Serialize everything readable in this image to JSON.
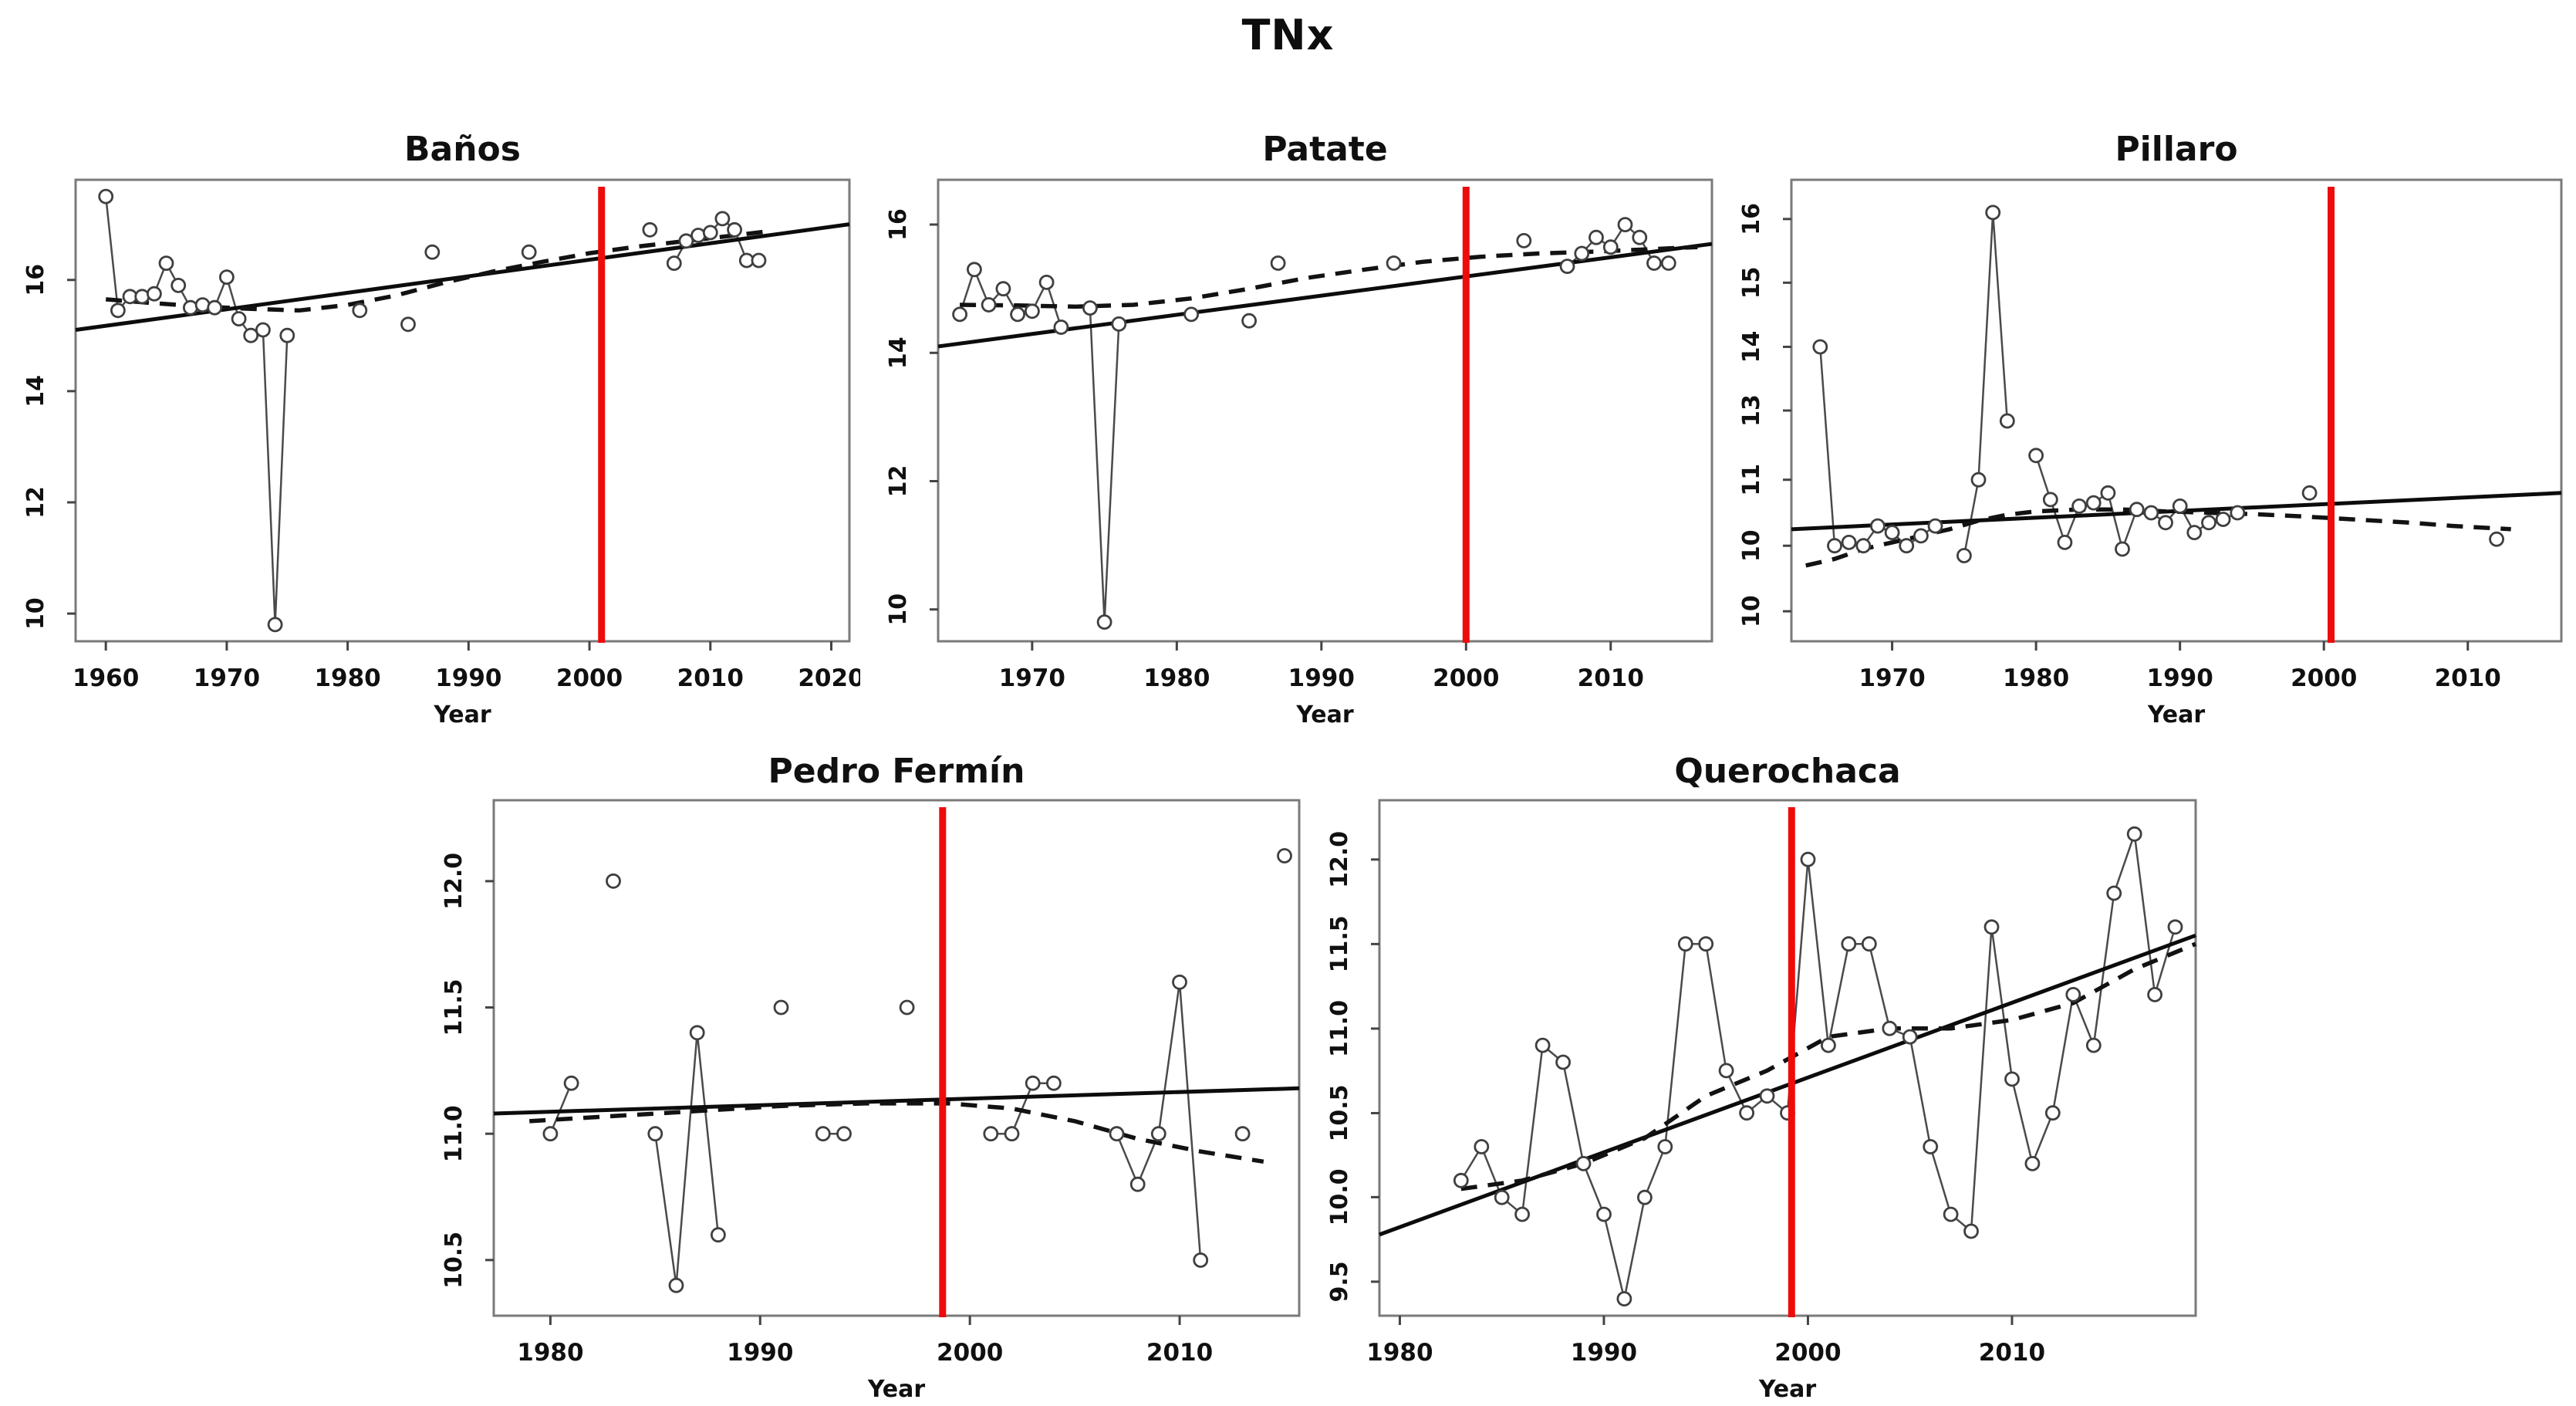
{
  "main_title": "TNx",
  "colors": {
    "red_marker_line": "#ee0b0b",
    "trend_line": "#0c0c0c",
    "loess_line": "#121212",
    "series_line": "#4a4a4a",
    "point_stroke": "#3f3f3f",
    "box_border": "#7a7a7a",
    "text": "#101010"
  },
  "chart_data": [
    {
      "type": "scatter-line",
      "title": "Baños",
      "xlabel": "Year",
      "xlim": [
        1957.5,
        2021.5
      ],
      "x_ticks": [
        1960,
        1970,
        1980,
        1990,
        2000,
        2010,
        2020
      ],
      "y_ticks": [
        [
          "16",
          0.217
        ],
        [
          "14",
          0.458
        ],
        [
          "12",
          0.699
        ],
        [
          "10",
          0.94
        ]
      ],
      "y_map": [
        [
          9.5,
          1.0
        ],
        [
          17.8,
          0.0
        ]
      ],
      "red_line_x": 2001,
      "trend": [
        [
          1957.5,
          15.1
        ],
        [
          2021.5,
          17.0
        ]
      ],
      "loess": [
        [
          1960,
          15.65
        ],
        [
          1964,
          15.58
        ],
        [
          1968,
          15.52
        ],
        [
          1972,
          15.48
        ],
        [
          1976,
          15.45
        ],
        [
          1980,
          15.55
        ],
        [
          1984,
          15.72
        ],
        [
          1988,
          15.95
        ],
        [
          1992,
          16.15
        ],
        [
          1996,
          16.32
        ],
        [
          2000,
          16.48
        ],
        [
          2004,
          16.6
        ],
        [
          2008,
          16.7
        ],
        [
          2012,
          16.8
        ],
        [
          2015,
          16.88
        ]
      ],
      "points": [
        [
          1960,
          17.5
        ],
        [
          1961,
          15.45
        ],
        [
          1962,
          15.7
        ],
        [
          1963,
          15.7
        ],
        [
          1964,
          15.75
        ],
        [
          1965,
          16.3
        ],
        [
          1966,
          15.9
        ],
        [
          1967,
          15.5
        ],
        [
          1968,
          15.55
        ],
        [
          1969,
          15.5
        ],
        [
          1970,
          16.05
        ],
        [
          1971,
          15.3
        ],
        [
          1972,
          15.0
        ],
        [
          1973,
          15.1
        ],
        [
          1974,
          9.8
        ],
        [
          1975,
          15.0
        ],
        [
          1981,
          15.45
        ],
        [
          1985,
          15.2
        ],
        [
          1987,
          16.5
        ],
        [
          1995,
          16.5
        ],
        [
          2005,
          16.9
        ],
        [
          2007,
          16.3
        ],
        [
          2008,
          16.7
        ],
        [
          2009,
          16.8
        ],
        [
          2010,
          16.85
        ],
        [
          2011,
          17.1
        ],
        [
          2012,
          16.9
        ],
        [
          2013,
          16.35
        ],
        [
          2014,
          16.35
        ]
      ]
    },
    {
      "type": "scatter-line",
      "title": "Patate",
      "xlabel": "Year",
      "xlim": [
        1963.5,
        2017
      ],
      "x_ticks": [
        1970,
        1980,
        1990,
        2000,
        2010
      ],
      "y_ticks": [
        [
          "16",
          0.097
        ],
        [
          "14",
          0.375
        ],
        [
          "12",
          0.653
        ],
        [
          "10",
          0.931
        ]
      ],
      "y_map": [
        [
          9.5,
          1.0
        ],
        [
          16.7,
          0.0
        ]
      ],
      "red_line_x": 2000,
      "trend": [
        [
          1963.5,
          14.1
        ],
        [
          2017,
          15.7
        ]
      ],
      "loess": [
        [
          1965,
          14.75
        ],
        [
          1969,
          14.74
        ],
        [
          1973,
          14.72
        ],
        [
          1977,
          14.75
        ],
        [
          1981,
          14.85
        ],
        [
          1985,
          15.0
        ],
        [
          1989,
          15.17
        ],
        [
          1993,
          15.3
        ],
        [
          1997,
          15.42
        ],
        [
          2001,
          15.5
        ],
        [
          2005,
          15.55
        ],
        [
          2009,
          15.58
        ],
        [
          2013,
          15.62
        ],
        [
          2016,
          15.65
        ]
      ],
      "points": [
        [
          1965,
          14.6
        ],
        [
          1966,
          15.3
        ],
        [
          1967,
          14.75
        ],
        [
          1968,
          15.0
        ],
        [
          1969,
          14.6
        ],
        [
          1970,
          14.65
        ],
        [
          1971,
          15.1
        ],
        [
          1972,
          14.4
        ],
        [
          1974,
          14.7
        ],
        [
          1975,
          9.8
        ],
        [
          1976,
          14.45
        ],
        [
          1981,
          14.6
        ],
        [
          1985,
          14.5
        ],
        [
          1987,
          15.4
        ],
        [
          1995,
          15.4
        ],
        [
          2004,
          15.75
        ],
        [
          2007,
          15.35
        ],
        [
          2008,
          15.55
        ],
        [
          2009,
          15.8
        ],
        [
          2010,
          15.65
        ],
        [
          2011,
          16.0
        ],
        [
          2012,
          15.8
        ],
        [
          2013,
          15.4
        ],
        [
          2014,
          15.4
        ]
      ]
    },
    {
      "type": "scatter-line",
      "title": "Pillaro",
      "xlabel": "Year",
      "xlim": [
        1963,
        2016.5
      ],
      "x_ticks": [
        1970,
        1980,
        1990,
        2000,
        2010
      ],
      "y_ticks": [
        [
          "16",
          0.085
        ],
        [
          "15",
          0.223
        ],
        [
          "14",
          0.362
        ],
        [
          "13",
          0.5
        ],
        [
          "11",
          0.65
        ],
        [
          "10",
          0.793
        ],
        [
          "10",
          0.935
        ]
      ],
      "y_map": [
        [
          9.3,
          0.893
        ],
        [
          10,
          0.793
        ],
        [
          11,
          0.65
        ],
        [
          13,
          0.5
        ],
        [
          14,
          0.362
        ],
        [
          15,
          0.223
        ],
        [
          16,
          0.085
        ],
        [
          16.6,
          0.0
        ]
      ],
      "red_line_x": 2000.5,
      "trend": [
        [
          1963,
          10.25
        ],
        [
          2016.5,
          10.8
        ]
      ],
      "loess": [
        [
          1964,
          9.7
        ],
        [
          1966,
          9.8
        ],
        [
          1968,
          9.95
        ],
        [
          1970,
          10.05
        ],
        [
          1972,
          10.15
        ],
        [
          1974,
          10.25
        ],
        [
          1976,
          10.38
        ],
        [
          1978,
          10.47
        ],
        [
          1980,
          10.52
        ],
        [
          1983,
          10.55
        ],
        [
          1986,
          10.55
        ],
        [
          1989,
          10.52
        ],
        [
          1992,
          10.5
        ],
        [
          1995,
          10.48
        ],
        [
          1998,
          10.45
        ],
        [
          2002,
          10.4
        ],
        [
          2006,
          10.35
        ],
        [
          2009,
          10.3
        ],
        [
          2013,
          10.25
        ]
      ],
      "points": [
        [
          1965,
          14.0
        ],
        [
          1966,
          10.0
        ],
        [
          1967,
          10.05
        ],
        [
          1968,
          10.0
        ],
        [
          1969,
          10.3
        ],
        [
          1970,
          10.2
        ],
        [
          1971,
          10.0
        ],
        [
          1972,
          10.15
        ],
        [
          1973,
          10.3
        ],
        [
          1975,
          9.85
        ],
        [
          1976,
          11.0
        ],
        [
          1977,
          16.1
        ],
        [
          1978,
          12.7
        ],
        [
          1980,
          11.7
        ],
        [
          1981,
          10.7
        ],
        [
          1982,
          10.05
        ],
        [
          1983,
          10.6
        ],
        [
          1984,
          10.65
        ],
        [
          1985,
          10.8
        ],
        [
          1986,
          9.95
        ],
        [
          1987,
          10.55
        ],
        [
          1988,
          10.5
        ],
        [
          1989,
          10.35
        ],
        [
          1990,
          10.6
        ],
        [
          1991,
          10.2
        ],
        [
          1992,
          10.35
        ],
        [
          1993,
          10.4
        ],
        [
          1994,
          10.5
        ],
        [
          1999,
          10.8
        ],
        [
          2012,
          10.1
        ]
      ]
    },
    {
      "type": "scatter-line",
      "title": "Pedro Fermín",
      "xlabel": "Year",
      "xlim": [
        1977.3,
        2015.7
      ],
      "x_ticks": [
        1980,
        1990,
        2000,
        2010
      ],
      "y_ticks": [
        [
          "12.0",
          0.157
        ],
        [
          "11.5",
          0.402
        ],
        [
          "11.0",
          0.647
        ],
        [
          "10.5",
          0.892
        ]
      ],
      "y_map": [
        [
          10.28,
          1.0
        ],
        [
          12.32,
          0.0
        ]
      ],
      "red_line_x": 1998.7,
      "trend": [
        [
          1977.3,
          11.08
        ],
        [
          2015.7,
          11.18
        ]
      ],
      "loess": [
        [
          1979,
          11.05
        ],
        [
          1983,
          11.07
        ],
        [
          1987,
          11.09
        ],
        [
          1991,
          11.11
        ],
        [
          1995,
          11.12
        ],
        [
          1999,
          11.12
        ],
        [
          2002,
          11.1
        ],
        [
          2005,
          11.05
        ],
        [
          2008,
          10.98
        ],
        [
          2011,
          10.93
        ],
        [
          2014,
          10.89
        ]
      ],
      "points": [
        [
          1980,
          11.0
        ],
        [
          1981,
          11.2
        ],
        [
          1983,
          12.0
        ],
        [
          1985,
          11.0
        ],
        [
          1986,
          10.4
        ],
        [
          1987,
          11.4
        ],
        [
          1988,
          10.6
        ],
        [
          1991,
          11.5
        ],
        [
          1993,
          11.0
        ],
        [
          1994,
          11.0
        ],
        [
          1997,
          11.5
        ],
        [
          2001,
          11.0
        ],
        [
          2002,
          11.0
        ],
        [
          2003,
          11.2
        ],
        [
          2004,
          11.2
        ],
        [
          2007,
          11.0
        ],
        [
          2008,
          10.8
        ],
        [
          2009,
          11.0
        ],
        [
          2010,
          11.6
        ],
        [
          2011,
          10.5
        ],
        [
          2013,
          11.0
        ],
        [
          2015,
          12.1
        ]
      ]
    },
    {
      "type": "scatter-line",
      "title": "Querochaca",
      "xlabel": "Year",
      "xlim": [
        1979,
        2019
      ],
      "x_ticks": [
        1980,
        1990,
        2000,
        2010
      ],
      "y_ticks": [
        [
          "12.0",
          0.115
        ],
        [
          "11.5",
          0.279
        ],
        [
          "11.0",
          0.443
        ],
        [
          "10.5",
          0.607
        ],
        [
          "10.0",
          0.77
        ],
        [
          "9.5",
          0.934
        ]
      ],
      "y_map": [
        [
          9.3,
          1.0
        ],
        [
          12.35,
          0.0
        ]
      ],
      "red_line_x": 1999.2,
      "trend": [
        [
          1979,
          9.78
        ],
        [
          2019,
          11.55
        ]
      ],
      "loess": [
        [
          1983,
          10.05
        ],
        [
          1986,
          10.1
        ],
        [
          1989,
          10.2
        ],
        [
          1992,
          10.35
        ],
        [
          1995,
          10.6
        ],
        [
          1998,
          10.75
        ],
        [
          2001,
          10.95
        ],
        [
          2004,
          11.0
        ],
        [
          2007,
          11.0
        ],
        [
          2010,
          11.05
        ],
        [
          2013,
          11.15
        ],
        [
          2016,
          11.35
        ],
        [
          2019,
          11.5
        ]
      ],
      "points": [
        [
          1983,
          10.1
        ],
        [
          1984,
          10.3
        ],
        [
          1985,
          10.0
        ],
        [
          1986,
          9.9
        ],
        [
          1987,
          10.9
        ],
        [
          1988,
          10.8
        ],
        [
          1989,
          10.2
        ],
        [
          1990,
          9.9
        ],
        [
          1991,
          9.4
        ],
        [
          1992,
          10.0
        ],
        [
          1993,
          10.3
        ],
        [
          1994,
          11.5
        ],
        [
          1995,
          11.5
        ],
        [
          1996,
          10.75
        ],
        [
          1997,
          10.5
        ],
        [
          1998,
          10.6
        ],
        [
          1999,
          10.5
        ],
        [
          2000,
          12.0
        ],
        [
          2001,
          10.9
        ],
        [
          2002,
          11.5
        ],
        [
          2003,
          11.5
        ],
        [
          2004,
          11.0
        ],
        [
          2005,
          10.95
        ],
        [
          2006,
          10.3
        ],
        [
          2007,
          9.9
        ],
        [
          2008,
          9.8
        ],
        [
          2009,
          11.6
        ],
        [
          2010,
          10.7
        ],
        [
          2011,
          10.2
        ],
        [
          2012,
          10.5
        ],
        [
          2013,
          11.2
        ],
        [
          2014,
          10.9
        ],
        [
          2015,
          11.8
        ],
        [
          2016,
          12.15
        ],
        [
          2017,
          11.2
        ],
        [
          2018,
          11.6
        ]
      ]
    }
  ]
}
